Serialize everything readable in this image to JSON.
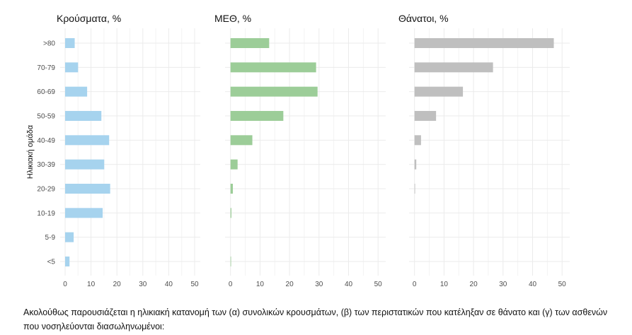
{
  "chart_data": {
    "type": "bar",
    "orientation": "horizontal",
    "ylabel": "Ηλικιακή ομάδα",
    "categories": [
      ">80",
      "70-79",
      "60-69",
      "50-59",
      "40-49",
      "30-39",
      "20-29",
      "10-19",
      "5-9",
      "<5"
    ],
    "grid": true,
    "panels": [
      {
        "title": "Κρούσματα, %",
        "color": "#a6d3ee",
        "xlim": [
          0,
          50
        ],
        "xticks": [
          0,
          10,
          20,
          30,
          40,
          50
        ],
        "values": [
          3.7,
          5.0,
          8.5,
          14.0,
          17.0,
          15.1,
          17.4,
          14.5,
          3.3,
          1.7
        ]
      },
      {
        "title": "ΜΕΘ, %",
        "color": "#9ccd98",
        "xlim": [
          0,
          50
        ],
        "xticks": [
          0,
          10,
          20,
          30,
          40,
          50
        ],
        "values": [
          13.1,
          29.0,
          29.5,
          17.9,
          7.4,
          2.4,
          0.8,
          0.3,
          0,
          0.1
        ]
      },
      {
        "title": "Θάνατοι, %",
        "color": "#bfbfbf",
        "xlim": [
          0,
          50
        ],
        "xticks": [
          0,
          10,
          20,
          30,
          40,
          50
        ],
        "values": [
          47.2,
          26.6,
          16.4,
          7.3,
          2.2,
          0.6,
          0.2,
          0,
          0,
          0
        ]
      }
    ]
  },
  "caption": "Ακολούθως παρουσιάζεται η ηλικιακή κατανομή των (α) συνολικών κρουσμάτων, (β) των περιστατικών που κατέληξαν σε θάνατο και (γ) των ασθενών που νοσηλεύονται διασωληνωμένοι:"
}
